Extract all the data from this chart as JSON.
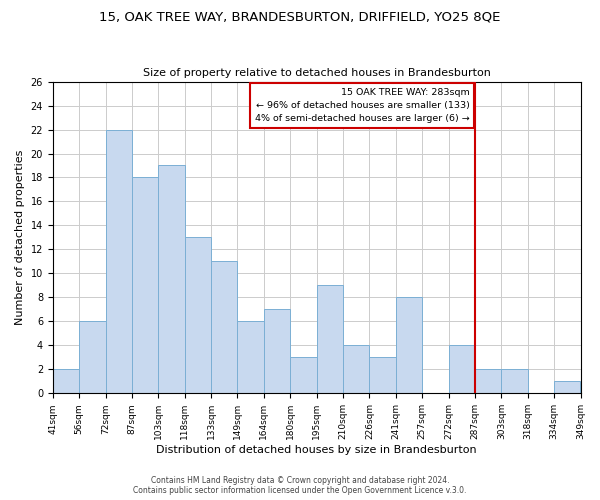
{
  "title": "15, OAK TREE WAY, BRANDESBURTON, DRIFFIELD, YO25 8QE",
  "subtitle": "Size of property relative to detached houses in Brandesburton",
  "xlabel": "Distribution of detached houses by size in Brandesburton",
  "ylabel": "Number of detached properties",
  "bar_color": "#c8d9ef",
  "bar_edge_color": "#7bafd4",
  "bins": [
    "41sqm",
    "56sqm",
    "72sqm",
    "87sqm",
    "103sqm",
    "118sqm",
    "133sqm",
    "149sqm",
    "164sqm",
    "180sqm",
    "195sqm",
    "210sqm",
    "226sqm",
    "241sqm",
    "257sqm",
    "272sqm",
    "287sqm",
    "303sqm",
    "318sqm",
    "334sqm",
    "349sqm"
  ],
  "values": [
    2,
    6,
    22,
    18,
    19,
    13,
    11,
    6,
    7,
    3,
    9,
    4,
    3,
    8,
    0,
    4,
    2,
    2,
    0,
    1
  ],
  "ylim": [
    0,
    26
  ],
  "yticks": [
    0,
    2,
    4,
    6,
    8,
    10,
    12,
    14,
    16,
    18,
    20,
    22,
    24,
    26
  ],
  "vline_x": 16,
  "vline_color": "#cc0000",
  "annotation_title": "15 OAK TREE WAY: 283sqm",
  "annotation_line1": "← 96% of detached houses are smaller (133)",
  "annotation_line2": "4% of semi-detached houses are larger (6) →",
  "annotation_box_color": "#ffffff",
  "annotation_box_edge_color": "#cc0000",
  "footer_line1": "Contains HM Land Registry data © Crown copyright and database right 2024.",
  "footer_line2": "Contains public sector information licensed under the Open Government Licence v.3.0.",
  "background_color": "#ffffff",
  "grid_color": "#cccccc"
}
